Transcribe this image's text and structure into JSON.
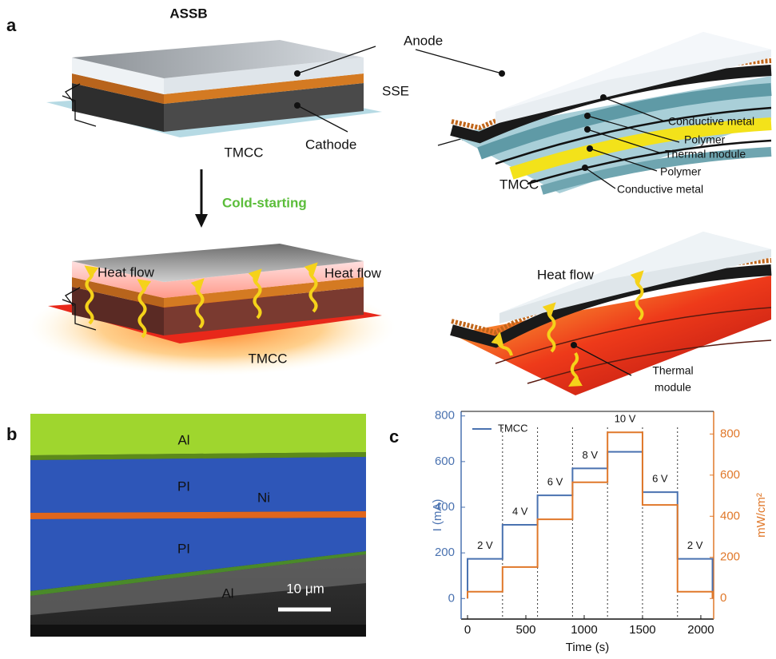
{
  "panel_a": {
    "label": "a",
    "title": "ASSB",
    "anode": "Anode",
    "sse": "SSE",
    "cathode": "Cathode",
    "tmcc_top": "TMCC",
    "arrow_label": "Cold-starting",
    "heat_flow_left": "Heat flow",
    "heat_flow_right": "Heat flow",
    "tmcc_bottom": "TMCC",
    "layers": [
      "Conductive metal",
      "Polymer",
      "Thermal module",
      "Polymer",
      "Conductive metal"
    ],
    "tmcc_curved": "TMCC",
    "heat_flow_curved": "Heat flow",
    "thermal_module": [
      "Thermal",
      "module"
    ]
  },
  "panel_b": {
    "label": "b",
    "layers": [
      "Al",
      "PI",
      "Ni",
      "PI",
      "Al"
    ],
    "scale_bar": "10 μm"
  },
  "chart_data": {
    "type": "line",
    "label": "c",
    "xlabel": "Time (s)",
    "ylabel": "I (mA)",
    "y2label": "mW/cm²",
    "xlim": [
      -55,
      2110
    ],
    "xticks": [
      0,
      500,
      1000,
      1500,
      2000
    ],
    "ylim": [
      -90,
      820
    ],
    "yticks": [
      0,
      200,
      400,
      600,
      800
    ],
    "y2lim": [
      -100,
      910
    ],
    "y2ticks": [
      0,
      200,
      400,
      600,
      800
    ],
    "legend": "upper left",
    "step_lines": [
      300,
      600,
      900,
      1200,
      1500,
      1800
    ],
    "annotations": [
      "2 V",
      "4 V",
      "6 V",
      "8 V",
      "10 V",
      "6 V",
      "2 V"
    ],
    "series": [
      {
        "name": "TMCC",
        "color": "#4a72b0",
        "x": [
          0,
          0,
          300,
          300,
          600,
          600,
          900,
          900,
          1200,
          1200,
          1500,
          1500,
          1800,
          1800,
          2100,
          2100
        ],
        "values": [
          0,
          174,
          174,
          323,
          323,
          452,
          452,
          570,
          570,
          643,
          643,
          466,
          466,
          174,
          174,
          0
        ]
      },
      {
        "color": "#e0782a",
        "axis": "y2",
        "x": [
          0,
          0,
          300,
          300,
          600,
          600,
          900,
          900,
          1200,
          1200,
          1500,
          1500,
          1800,
          1800,
          2100,
          2100
        ],
        "values": [
          0,
          33,
          33,
          153,
          153,
          385,
          385,
          565,
          565,
          808,
          808,
          455,
          455,
          33,
          33,
          0
        ]
      }
    ]
  }
}
